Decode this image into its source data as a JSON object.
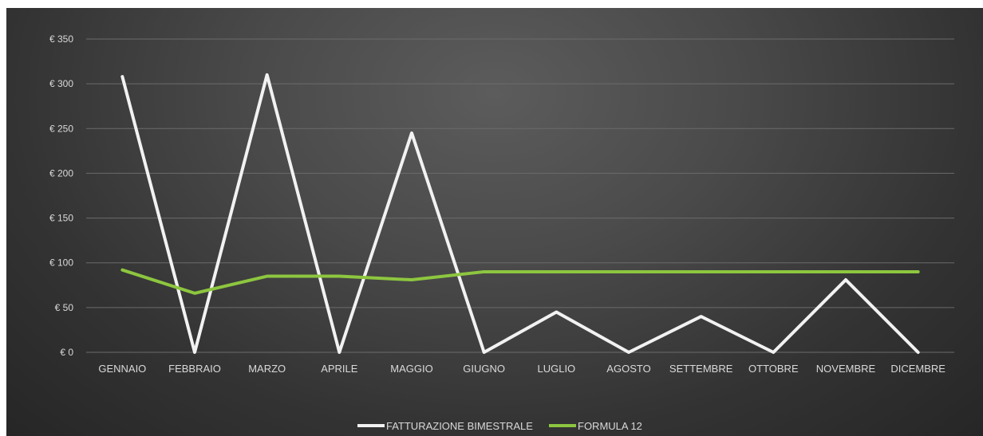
{
  "chart_data": {
    "type": "line",
    "categories": [
      "GENNAIO",
      "FEBBRAIO",
      "MARZO",
      "APRILE",
      "MAGGIO",
      "GIUGNO",
      "LUGLIO",
      "AGOSTO",
      "SETTEMBRE",
      "OTTOBRE",
      "NOVEMBRE",
      "DICEMBRE"
    ],
    "series": [
      {
        "name": "FATTURAZIONE BIMESTRALE",
        "color": "#f2f2f2",
        "values": [
          308,
          0,
          310,
          0,
          245,
          0,
          45,
          0,
          40,
          0,
          81,
          0
        ]
      },
      {
        "name": "FORMULA 12",
        "color": "#8dc63f",
        "values": [
          92,
          66,
          85,
          85,
          81,
          90,
          90,
          90,
          90,
          90,
          90,
          90
        ]
      }
    ],
    "y_ticks": [
      "€ 0",
      "€ 50",
      "€ 100",
      "€ 150",
      "€ 200",
      "€ 250",
      "€ 300",
      "€ 350"
    ],
    "ylim": [
      0,
      350
    ],
    "grid": true,
    "legend_position": "bottom"
  }
}
